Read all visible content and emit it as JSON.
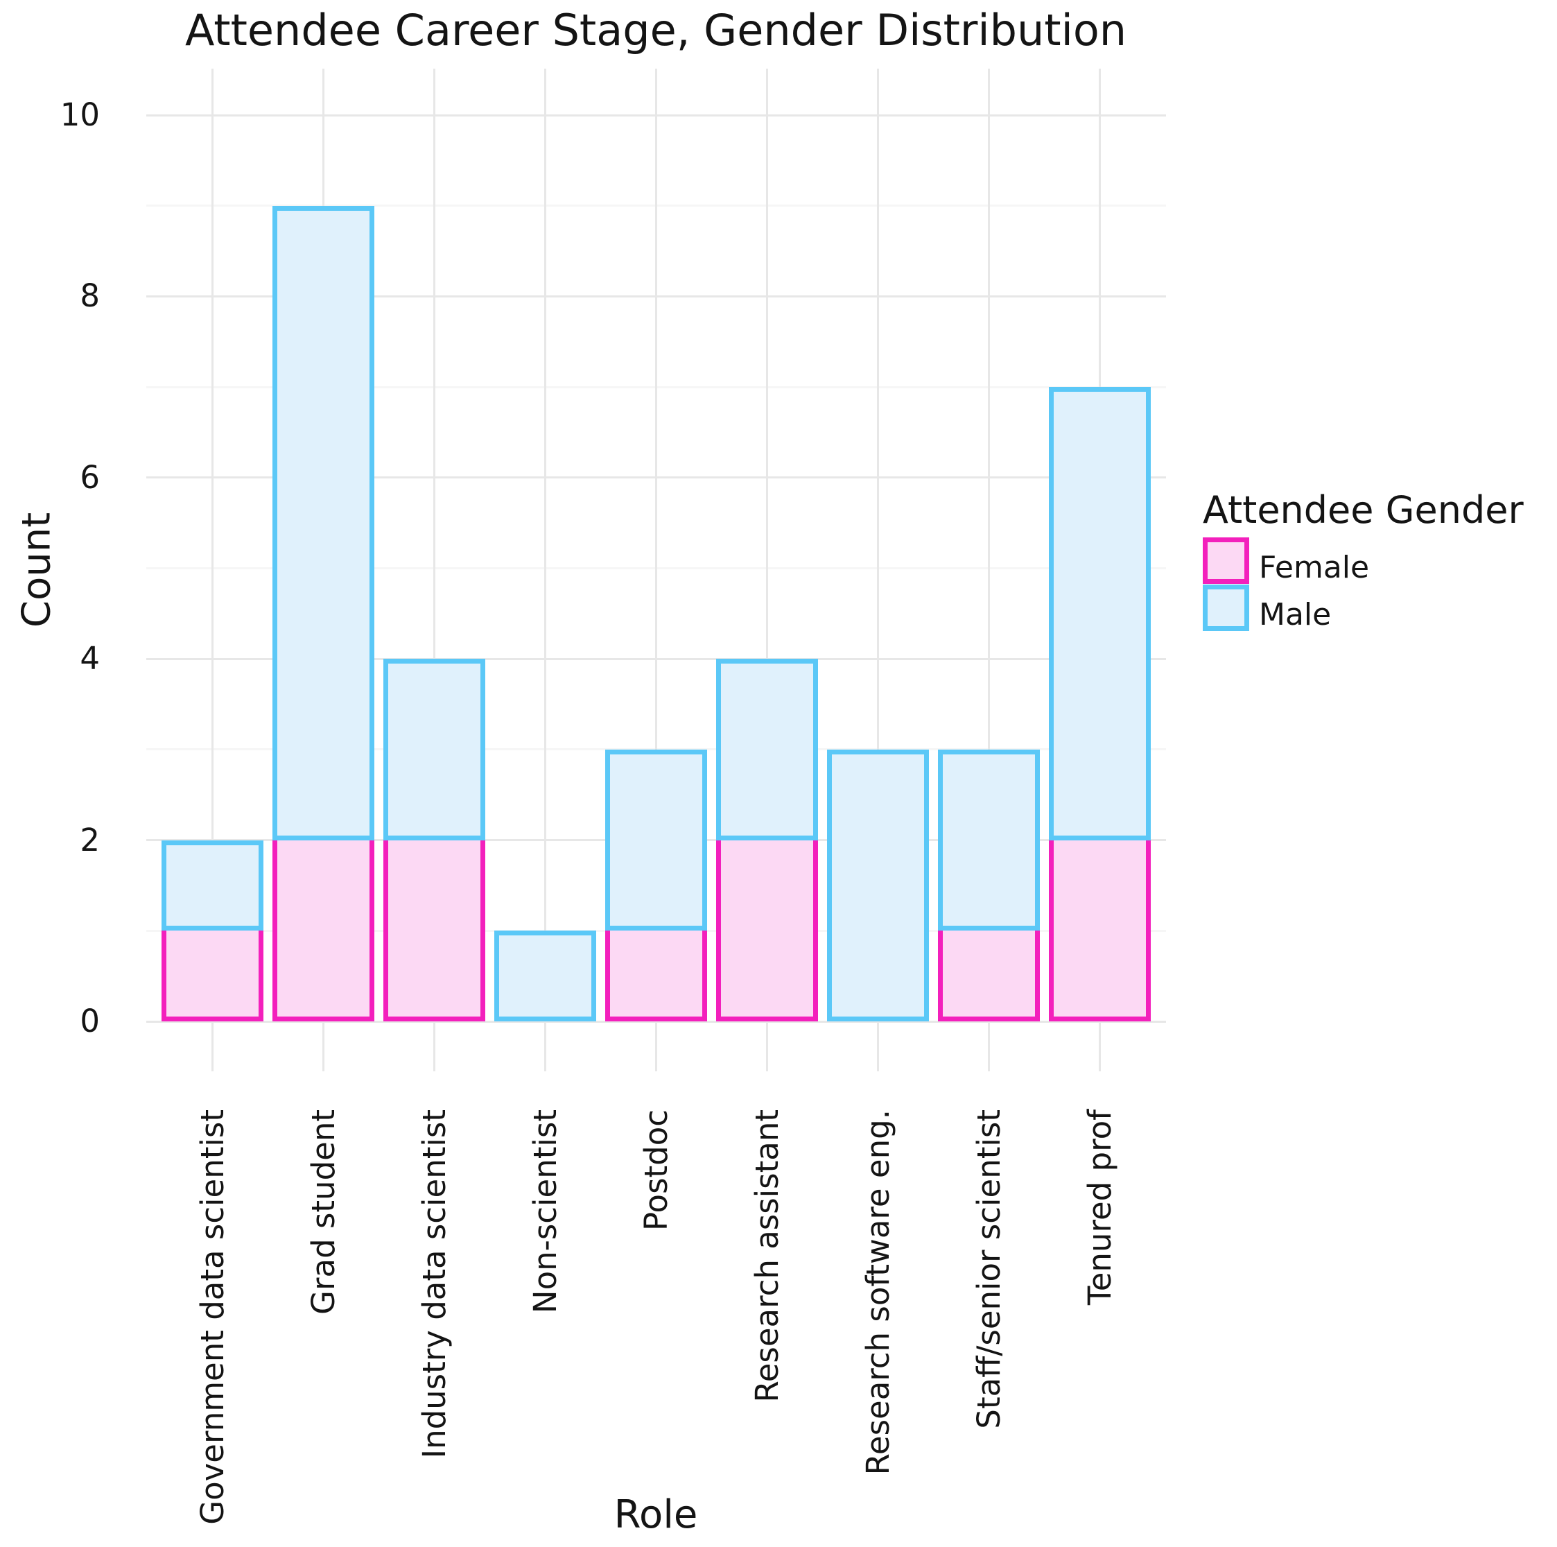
{
  "title": "Attendee Career Stage, Gender Distribution",
  "chart_data": {
    "type": "bar",
    "stacked": true,
    "title": "Attendee Career Stage, Gender Distribution",
    "xlabel": "Role",
    "ylabel": "Count",
    "categories": [
      "Government data scientist",
      "Grad student",
      "Industry data scientist",
      "Non-scientist",
      "Postdoc",
      "Research assistant",
      "Research software eng.",
      "Staff/senior scientist",
      "Tenured prof"
    ],
    "series": [
      {
        "name": "Female",
        "values": [
          1,
          2,
          2,
          0,
          1,
          2,
          0,
          1,
          2
        ]
      },
      {
        "name": "Male",
        "values": [
          1,
          7,
          2,
          1,
          2,
          2,
          3,
          2,
          5
        ]
      }
    ],
    "stack_totals": [
      2,
      9,
      4,
      1,
      3,
      4,
      3,
      3,
      7
    ],
    "y_ticks": [
      0,
      2,
      4,
      6,
      8,
      10
    ],
    "y_minor_ticks": [
      1,
      3,
      5,
      7,
      9
    ],
    "ylim": [
      0,
      10.5
    ],
    "grid": true,
    "legend_title": "Attendee Gender",
    "legend_position": "right"
  },
  "colors": {
    "female_fill": "#FCD9F4",
    "female_stroke": "#F320BC",
    "male_fill": "#E0F1FC",
    "male_stroke": "#5BC8F7",
    "grid_major": "#E7E7E7",
    "grid_minor": "#F6F6F6",
    "text": "#141414",
    "background": "#FFFFFF"
  }
}
